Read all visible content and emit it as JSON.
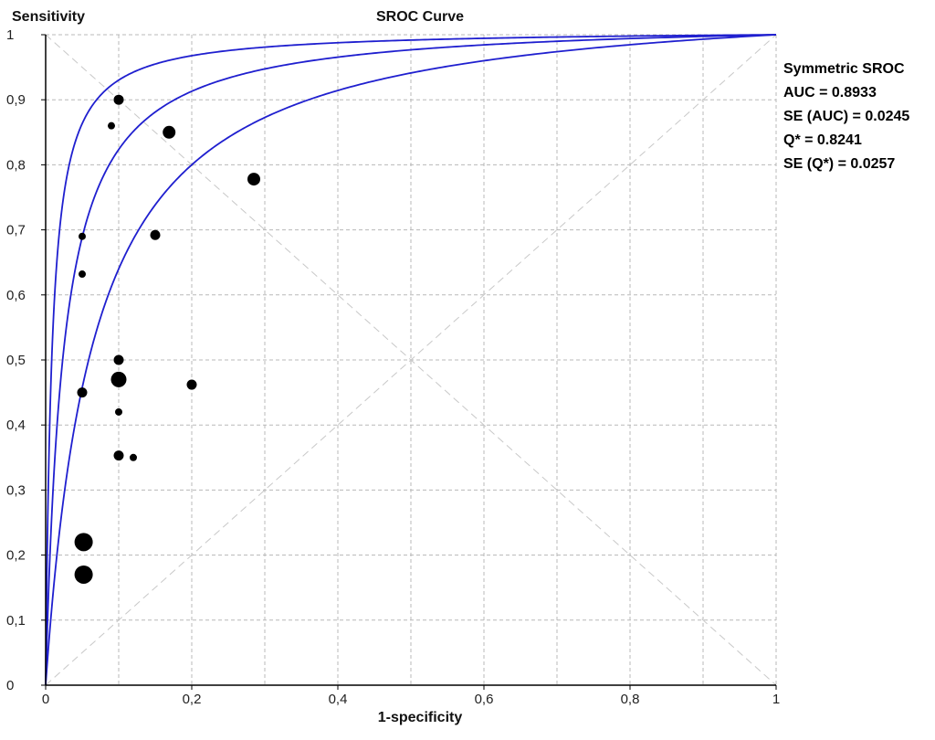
{
  "chart_data": {
    "type": "scatter",
    "title": "SROC Curve",
    "xlabel": "1-specificity",
    "ylabel": "Sensitivity",
    "xlim": [
      0,
      1
    ],
    "ylim": [
      0,
      1
    ],
    "x_ticks": [
      "0",
      "0,2",
      "0,4",
      "0,6",
      "0,8",
      "1"
    ],
    "y_ticks": [
      "0",
      "0,1",
      "0,2",
      "0,3",
      "0,4",
      "0,5",
      "0,6",
      "0,7",
      "0,8",
      "0,9",
      "1"
    ],
    "grid": true,
    "legend": "none",
    "stats": {
      "lines": [
        "Symmetric SROC",
        "AUC = 0.8933",
        "SE (AUC) = 0.0245",
        "Q* = 0.8241",
        "SE (Q*) = 0.0257"
      ]
    },
    "points": [
      {
        "x": 0.1,
        "y": 0.9,
        "size": "medium"
      },
      {
        "x": 0.09,
        "y": 0.86,
        "size": "small"
      },
      {
        "x": 0.169,
        "y": 0.85,
        "size": "large"
      },
      {
        "x": 0.285,
        "y": 0.778,
        "size": "large"
      },
      {
        "x": 0.05,
        "y": 0.69,
        "size": "small"
      },
      {
        "x": 0.15,
        "y": 0.692,
        "size": "medium"
      },
      {
        "x": 0.05,
        "y": 0.632,
        "size": "small"
      },
      {
        "x": 0.1,
        "y": 0.5,
        "size": "medium"
      },
      {
        "x": 0.1,
        "y": 0.47,
        "size": "xlarge"
      },
      {
        "x": 0.05,
        "y": 0.45,
        "size": "medium"
      },
      {
        "x": 0.2,
        "y": 0.462,
        "size": "medium"
      },
      {
        "x": 0.1,
        "y": 0.42,
        "size": "small"
      },
      {
        "x": 0.1,
        "y": 0.353,
        "size": "medium"
      },
      {
        "x": 0.12,
        "y": 0.35,
        "size": "small"
      },
      {
        "x": 0.052,
        "y": 0.22,
        "size": "xxlarge"
      },
      {
        "x": 0.052,
        "y": 0.17,
        "size": "xxlarge"
      }
    ],
    "curves": [
      {
        "name": "upper",
        "dor": 120
      },
      {
        "name": "center",
        "dor": 42
      },
      {
        "name": "lower",
        "dor": 16
      }
    ],
    "colors": {
      "curve": "#1f1fcf",
      "grid": "#b8b8b8",
      "diagonal": "#c8c8c8",
      "points": "#000000"
    }
  }
}
